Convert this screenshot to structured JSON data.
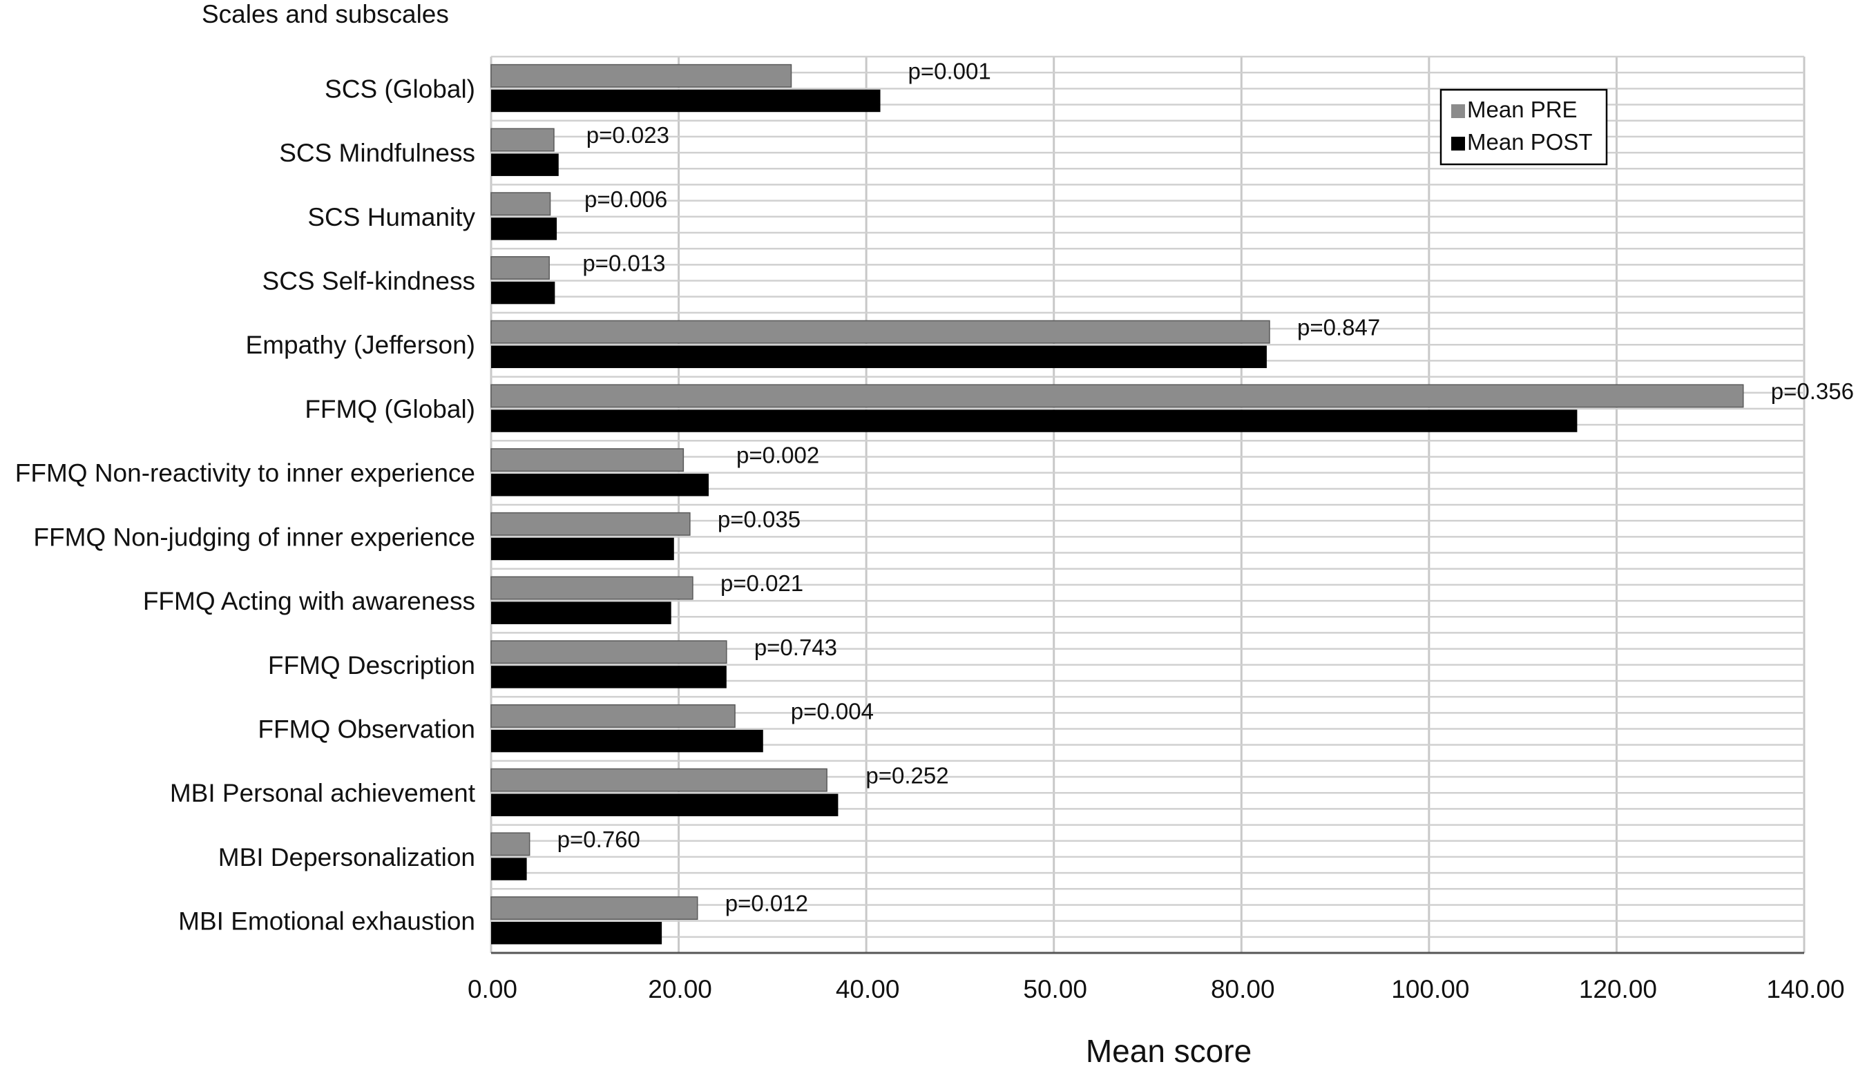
{
  "chart_data": {
    "type": "bar",
    "orientation": "horizontal",
    "title": "",
    "ylabel": "Scales and subscales",
    "xlabel": "Mean score",
    "xlim": [
      0,
      140
    ],
    "x_tick_labels": [
      "0.00",
      "20.00",
      "40.00",
      "50.00",
      "80.00",
      "100.00",
      "120.00",
      "140.00"
    ],
    "categories": [
      "SCS (Global)",
      "SCS Mindfulness",
      "SCS Humanity",
      "SCS Self-kindness",
      "Empathy (Jefferson)",
      "FFMQ (Global)",
      "FFMQ Non-reactivity to inner experience",
      "FFMQ Non-judging of inner experience",
      "FFMQ Acting with awareness",
      "FFMQ Description",
      "FFMQ Observation",
      "MBI Personal achievement",
      "MBI Depersonalization",
      "MBI Emotional exhaustion"
    ],
    "series": [
      {
        "name": "Mean PRE",
        "color": "#8c8c8c",
        "values": [
          32.0,
          6.7,
          6.3,
          6.2,
          83.0,
          133.5,
          20.5,
          21.2,
          21.5,
          25.1,
          26.0,
          35.8,
          4.1,
          22.0
        ]
      },
      {
        "name": "Mean POST",
        "color": "#000000",
        "values": [
          41.5,
          7.2,
          7.0,
          6.8,
          82.7,
          115.8,
          23.2,
          19.5,
          19.2,
          25.1,
          29.0,
          37.0,
          3.8,
          18.2
        ]
      }
    ],
    "p_values": [
      "p=0.001",
      "p=0.023",
      "p=0.006",
      "p=0.013",
      "p=0.847",
      "p=0.356",
      "p=0.002",
      "p=0.035",
      "p=0.021",
      "p=0.743",
      "p=0.004",
      "p=0.252",
      "p=0.760",
      "p=0.012"
    ],
    "legend_position": "top-right",
    "grid": true
  }
}
